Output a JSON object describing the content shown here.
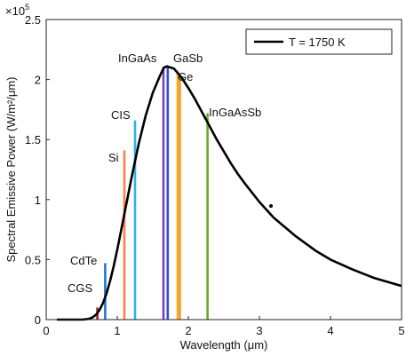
{
  "chart_data": {
    "type": "line",
    "xlabel": "Wavelength (μm)",
    "ylabel": "Spectral Emissive Power (W/m²/μm)",
    "y_multiplier_label": "×10",
    "y_multiplier_exponent": "5",
    "y_multiplier": 100000,
    "xlim": [
      0,
      5
    ],
    "ylim": [
      0,
      2.5
    ],
    "x_ticks": [
      0,
      1,
      2,
      3,
      4,
      5
    ],
    "y_ticks": [
      0,
      0.5,
      1,
      1.5,
      2,
      2.5
    ],
    "x_tick_labels": [
      "0",
      "1",
      "2",
      "3",
      "4",
      "5"
    ],
    "y_tick_labels": [
      "0",
      "0.5",
      "1",
      "1.5",
      "2",
      "2.5"
    ],
    "grid": false,
    "legend_placement": "top-right",
    "series": [
      {
        "name": "T = 1750 K",
        "color": "#000000",
        "x": [
          0.15,
          0.3,
          0.4,
          0.5,
          0.55,
          0.6,
          0.65,
          0.7,
          0.75,
          0.8,
          0.85,
          0.9,
          0.95,
          1.0,
          1.05,
          1.1,
          1.2,
          1.3,
          1.4,
          1.5,
          1.6,
          1.656,
          1.7,
          1.8,
          1.9,
          2.0,
          2.1,
          2.2,
          2.3,
          2.4,
          2.5,
          2.6,
          2.7,
          2.8,
          3.0,
          3.2,
          3.5,
          3.8,
          4.0,
          4.3,
          4.6,
          5.0
        ],
        "y": [
          0.0,
          0.0,
          0.0,
          0.0,
          0.002,
          0.007,
          0.018,
          0.04,
          0.08,
          0.138,
          0.22,
          0.324,
          0.446,
          0.583,
          0.73,
          0.88,
          1.18,
          1.46,
          1.7,
          1.89,
          2.03,
          2.1,
          2.11,
          2.09,
          2.02,
          1.93,
          1.83,
          1.72,
          1.61,
          1.5,
          1.4,
          1.3,
          1.21,
          1.13,
          0.98,
          0.85,
          0.7,
          0.57,
          0.5,
          0.42,
          0.35,
          0.28
        ]
      }
    ],
    "bandgap_markers": [
      {
        "label": "CGS",
        "x": 0.72,
        "y": 0.1,
        "color": "#a51c30"
      },
      {
        "label": "CdTe",
        "x": 0.83,
        "y": 0.47,
        "color": "#1f77d4"
      },
      {
        "label": "Si",
        "x": 1.1,
        "y": 1.41,
        "color": "#ff7f50"
      },
      {
        "label": "CIS",
        "x": 1.25,
        "y": 1.66,
        "color": "#29b6e6"
      },
      {
        "label": "InGaAs",
        "x": 1.65,
        "y": 2.1,
        "color": "#7b3fc0"
      },
      {
        "label": "",
        "x": 1.71,
        "y": 2.11,
        "color": "#2952c9"
      },
      {
        "label": "GaSb",
        "x": 1.85,
        "y": 2.07,
        "color": "#f0b020"
      },
      {
        "label": "Ge",
        "x": 1.88,
        "y": 2.04,
        "color": "#f59a23"
      },
      {
        "label": "InGaAsSb",
        "x": 2.27,
        "y": 1.72,
        "color": "#6aaa2a"
      }
    ]
  }
}
